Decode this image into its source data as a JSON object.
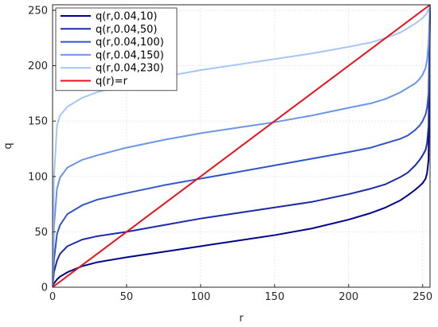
{
  "chart_data": {
    "type": "line",
    "title": "",
    "xlabel": "r",
    "ylabel": "q",
    "xlim": [
      0,
      255
    ],
    "ylim": [
      0,
      255
    ],
    "xticks": [
      0,
      50,
      100,
      150,
      200,
      250
    ],
    "yticks": [
      0,
      50,
      100,
      150,
      200,
      250
    ],
    "grid": true,
    "legend_position": "top-left",
    "series": [
      {
        "name": "q(r,0.04,10)",
        "color": "#00008b",
        "x": [
          0,
          1,
          3,
          5,
          10,
          20,
          30,
          50,
          75,
          100,
          125,
          150,
          175,
          200,
          215,
          225,
          235,
          240,
          245,
          248,
          250,
          252,
          253,
          254,
          255
        ],
        "y": [
          0,
          3.5,
          7,
          9.5,
          13.5,
          19,
          22.5,
          27,
          32,
          37,
          42,
          47,
          53,
          61,
          67,
          72,
          78.5,
          83,
          88,
          91.5,
          94,
          98,
          103,
          115,
          255
        ]
      },
      {
        "name": "q(r,0.04,50)",
        "color": "#1a2aa8",
        "x": [
          0,
          1,
          3,
          5,
          10,
          20,
          30,
          50,
          75,
          100,
          125,
          150,
          175,
          200,
          215,
          225,
          235,
          240,
          245,
          248,
          250,
          252,
          253,
          254,
          255
        ],
        "y": [
          0,
          14,
          24,
          30,
          37,
          43,
          46,
          50,
          56,
          62,
          67,
          72,
          77,
          84,
          89,
          93,
          99.5,
          103.5,
          110,
          115,
          119,
          124,
          130,
          145,
          255
        ]
      },
      {
        "name": "q(r,0.04,100)",
        "color": "#3355cc",
        "x": [
          0,
          1,
          3,
          5,
          10,
          20,
          30,
          50,
          75,
          100,
          125,
          150,
          175,
          200,
          215,
          225,
          235,
          240,
          245,
          248,
          250,
          252,
          253,
          254,
          255
        ],
        "y": [
          0,
          25,
          48,
          56,
          66,
          74,
          79,
          85,
          92,
          98,
          104,
          110,
          116,
          122,
          126,
          130,
          134,
          137,
          142,
          146,
          150,
          156,
          162,
          175,
          255
        ]
      },
      {
        "name": "q(r,0.04,150)",
        "color": "#6b95e6",
        "x": [
          0,
          1,
          3,
          5,
          10,
          20,
          30,
          50,
          75,
          100,
          125,
          150,
          175,
          200,
          215,
          225,
          235,
          240,
          245,
          248,
          250,
          252,
          253,
          254,
          255
        ],
        "y": [
          0,
          55,
          89,
          99,
          108,
          115,
          119,
          126,
          133,
          139,
          144,
          149,
          155,
          162,
          166,
          170,
          176,
          180,
          184,
          188,
          192,
          198,
          205,
          220,
          255
        ]
      },
      {
        "name": "q(r,0.04,230)",
        "color": "#a6c5f5",
        "x": [
          0,
          1,
          3,
          5,
          10,
          20,
          30,
          50,
          75,
          100,
          125,
          150,
          175,
          200,
          215,
          225,
          235,
          240,
          245,
          248,
          250,
          252,
          253,
          254,
          255
        ],
        "y": [
          0,
          100,
          146,
          155,
          163,
          171,
          176,
          183,
          190,
          196,
          201,
          206,
          211,
          217,
          221,
          225,
          230,
          234,
          238,
          241,
          243,
          246,
          248,
          251,
          255
        ]
      },
      {
        "name": "q(r)=r",
        "color": "#e8121d",
        "x": [
          0,
          255
        ],
        "y": [
          0,
          255
        ]
      }
    ]
  }
}
